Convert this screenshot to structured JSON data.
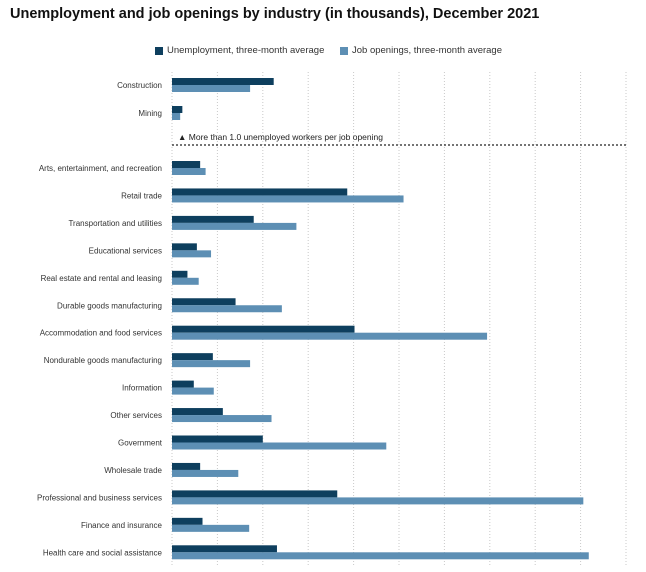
{
  "title": "Unemployment and job openings by industry (in thousands), December 2021",
  "annotation": "▲ More than 1.0 unemployed workers per job opening",
  "colors": {
    "unemployment": "#0e3f5e",
    "job_openings": "#5d8fb4",
    "grid": "#c9c9c9",
    "divider": "#222222"
  },
  "legend": {
    "unemployment_label": "Unemployment, three-month average",
    "job_openings_label": "Job openings, three-month average"
  },
  "chart_data": {
    "type": "bar",
    "orientation": "horizontal",
    "title": "Unemployment and job openings by industry (in thousands), December 2021",
    "xlabel": "",
    "ylabel": "",
    "xlim": [
      0,
      2500
    ],
    "x_tick_interval": 250,
    "x_tick_labels_shown": false,
    "grid": true,
    "legend_position": "top",
    "categories": [
      "Construction",
      "Mining",
      "Arts, entertainment, and recreation",
      "Retail trade",
      "Transportation and utilities",
      "Educational services",
      "Real estate and rental and leasing",
      "Durable goods manufacturing",
      "Accommodation and food services",
      "Nondurable goods manufacturing",
      "Information",
      "Other services",
      "Government",
      "Wholesale trade",
      "Professional and business services",
      "Finance and insurance",
      "Health care and social assistance"
    ],
    "series": [
      {
        "name": "Unemployment, three-month average",
        "values": [
          560,
          57,
          155,
          965,
          450,
          137,
          85,
          350,
          1005,
          225,
          120,
          280,
          500,
          155,
          910,
          168,
          578
        ]
      },
      {
        "name": "Job openings, three-month average",
        "values": [
          430,
          45,
          185,
          1275,
          685,
          215,
          147,
          605,
          1735,
          430,
          230,
          548,
          1180,
          365,
          2265,
          425,
          2295
        ]
      }
    ],
    "annotation": {
      "text": "▲ More than 1.0 unemployed workers per job opening",
      "after_category": "Mining"
    }
  }
}
